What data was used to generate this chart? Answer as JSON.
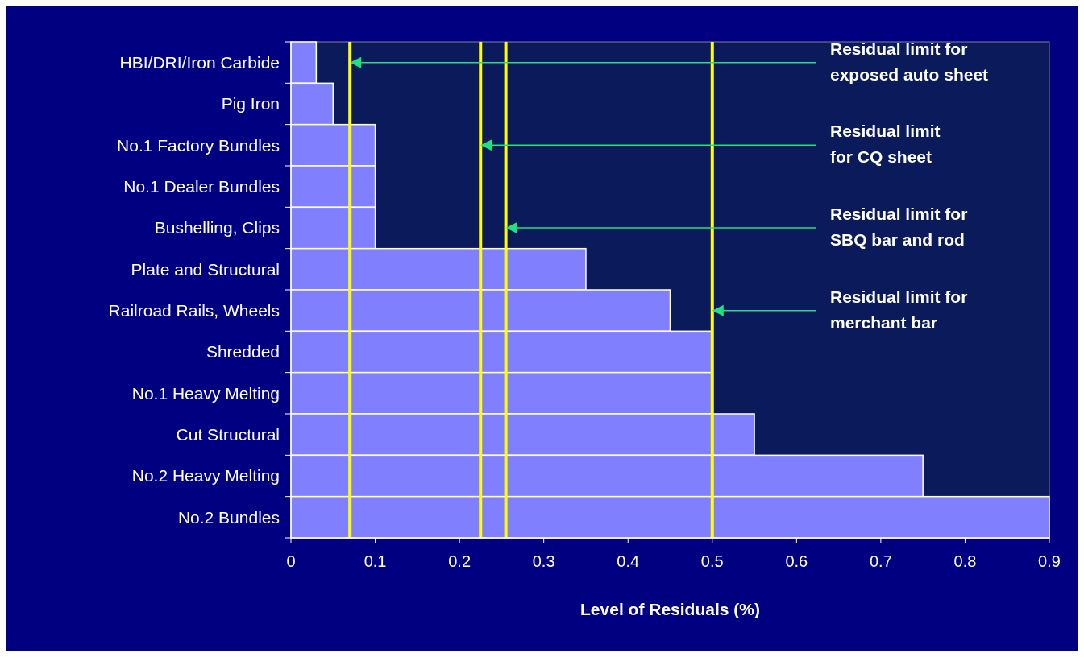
{
  "chart_data": {
    "type": "bar",
    "orientation": "horizontal",
    "xlabel": "Level of Residuals (%)",
    "categories": [
      "HBI/DRI/Iron Carbide",
      "Pig Iron",
      "No.1 Factory Bundles",
      "No.1 Dealer Bundles",
      "Bushelling, Clips",
      "Plate and Structural",
      "Railroad Rails, Wheels",
      "Shredded",
      "No.1 Heavy Melting",
      "Cut Structural",
      "No.2 Heavy Melting",
      "No.2 Bundles"
    ],
    "values": [
      0.03,
      0.05,
      0.1,
      0.1,
      0.1,
      0.35,
      0.45,
      0.5,
      0.5,
      0.55,
      0.75,
      0.9
    ],
    "color": "#8080ff",
    "xlim": [
      0,
      0.9
    ],
    "xticks": [
      0,
      0.1,
      0.2,
      0.3,
      0.4,
      0.5,
      0.6,
      0.7,
      0.8,
      0.9
    ],
    "ref_lines": [
      {
        "axis": "x",
        "value": 0.07,
        "color": "#ffff00"
      },
      {
        "axis": "x",
        "value": 0.225,
        "color": "#ffff00"
      },
      {
        "axis": "x",
        "value": 0.255,
        "color": "#ffff00"
      },
      {
        "axis": "x",
        "value": 0.5,
        "color": "#ffff00"
      }
    ],
    "annotations": [
      "Residual limit for\nexposed auto sheet",
      "Residual limit\nfor CQ sheet",
      "Residual limit for\nSBQ bar and rod",
      "Residual limit for\nmerchant bar"
    ]
  }
}
